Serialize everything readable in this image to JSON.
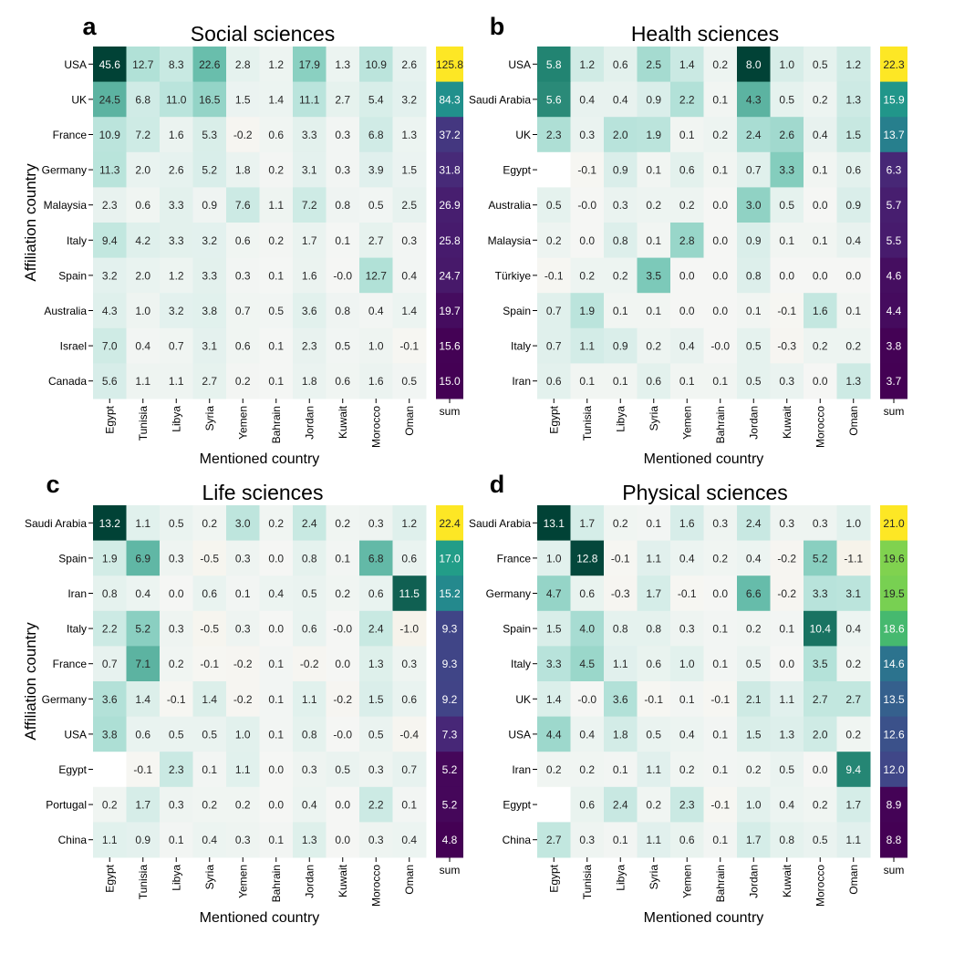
{
  "figure": {
    "x_axis_label": "Mentioned country",
    "y_axis_label": "Affiliation country",
    "sum_label": "sum",
    "mentioned_countries": [
      "Egypt",
      "Tunisia",
      "Libya",
      "Syria",
      "Yemen",
      "Bahrain",
      "Jordan",
      "Kuwait",
      "Morocco",
      "Oman"
    ]
  },
  "chart_data": [
    {
      "type": "heatmap",
      "panel": "a",
      "title": "Social sciences",
      "xlabel": "Mentioned country",
      "ylabel": "Affiliation country",
      "columns": [
        "Egypt",
        "Tunisia",
        "Libya",
        "Syria",
        "Yemen",
        "Bahrain",
        "Jordan",
        "Kuwait",
        "Morocco",
        "Oman"
      ],
      "rows": [
        {
          "country": "USA",
          "values": [
            45.6,
            12.7,
            8.3,
            22.6,
            2.8,
            1.2,
            17.9,
            1.3,
            10.9,
            2.6
          ],
          "sum": "125.8"
        },
        {
          "country": "UK",
          "values": [
            24.5,
            6.8,
            11.0,
            16.5,
            1.5,
            1.4,
            11.1,
            2.7,
            5.4,
            3.2
          ],
          "sum": "84.3"
        },
        {
          "country": "France",
          "values": [
            10.9,
            7.2,
            1.6,
            5.3,
            -0.2,
            0.6,
            3.3,
            0.3,
            6.8,
            1.3
          ],
          "sum": "37.2"
        },
        {
          "country": "Germany",
          "values": [
            11.3,
            2.0,
            2.6,
            5.2,
            1.8,
            0.2,
            3.1,
            0.3,
            3.9,
            1.5
          ],
          "sum": "31.8"
        },
        {
          "country": "Malaysia",
          "values": [
            2.3,
            0.6,
            3.3,
            0.9,
            7.6,
            1.1,
            7.2,
            0.8,
            0.5,
            2.5
          ],
          "sum": "26.9"
        },
        {
          "country": "Italy",
          "values": [
            9.4,
            4.2,
            3.3,
            3.2,
            0.6,
            0.2,
            1.7,
            0.1,
            2.7,
            0.3
          ],
          "sum": "25.8"
        },
        {
          "country": "Spain",
          "values": [
            3.2,
            2.0,
            1.2,
            3.3,
            0.3,
            0.1,
            1.6,
            "-0.0",
            12.7,
            0.4
          ],
          "sum": "24.7"
        },
        {
          "country": "Australia",
          "values": [
            4.3,
            1.0,
            3.2,
            3.8,
            0.7,
            0.5,
            3.6,
            0.8,
            0.4,
            1.4
          ],
          "sum": "19.7"
        },
        {
          "country": "Israel",
          "values": [
            7.0,
            0.4,
            0.7,
            3.1,
            0.6,
            0.1,
            2.3,
            0.5,
            1.0,
            -0.1
          ],
          "sum": "15.6"
        },
        {
          "country": "Canada",
          "values": [
            5.6,
            1.1,
            1.1,
            2.7,
            0.2,
            0.1,
            1.8,
            0.6,
            1.6,
            0.5
          ],
          "sum": "15.0"
        }
      ]
    },
    {
      "type": "heatmap",
      "panel": "b",
      "title": "Health sciences",
      "xlabel": "Mentioned country",
      "ylabel": "",
      "columns": [
        "Egypt",
        "Tunisia",
        "Libya",
        "Syria",
        "Yemen",
        "Bahrain",
        "Jordan",
        "Kuwait",
        "Morocco",
        "Oman"
      ],
      "rows": [
        {
          "country": "USA",
          "values": [
            5.8,
            1.2,
            0.6,
            2.5,
            1.4,
            0.2,
            8.0,
            1.0,
            0.5,
            1.2
          ],
          "sum": "22.3"
        },
        {
          "country": "Saudi Arabia",
          "values": [
            5.6,
            0.4,
            0.4,
            0.9,
            2.2,
            0.1,
            4.3,
            0.5,
            0.2,
            1.3
          ],
          "sum": "15.9"
        },
        {
          "country": "UK",
          "values": [
            2.3,
            0.3,
            2.0,
            1.9,
            0.1,
            0.2,
            2.4,
            2.6,
            0.4,
            1.5
          ],
          "sum": "13.7"
        },
        {
          "country": "Egypt",
          "values": [
            null,
            -0.1,
            0.9,
            0.1,
            0.6,
            0.1,
            0.7,
            3.3,
            0.1,
            0.6
          ],
          "sum": "6.3"
        },
        {
          "country": "Australia",
          "values": [
            0.5,
            "-0.0",
            0.3,
            0.2,
            0.2,
            0.0,
            3.0,
            0.5,
            0.0,
            0.9
          ],
          "sum": "5.7"
        },
        {
          "country": "Malaysia",
          "values": [
            0.2,
            0.0,
            0.8,
            0.1,
            2.8,
            0.0,
            0.9,
            0.1,
            0.1,
            0.4
          ],
          "sum": "5.5"
        },
        {
          "country": "Türkiye",
          "values": [
            -0.1,
            0.2,
            0.2,
            3.5,
            0.0,
            0.0,
            0.8,
            0.0,
            0.0,
            0.0
          ],
          "sum": "4.6"
        },
        {
          "country": "Spain",
          "values": [
            0.7,
            1.9,
            0.1,
            0.1,
            0.0,
            0.0,
            0.1,
            -0.1,
            1.6,
            0.1
          ],
          "sum": "4.4"
        },
        {
          "country": "Italy",
          "values": [
            0.7,
            1.1,
            0.9,
            0.2,
            0.4,
            "-0.0",
            0.5,
            -0.3,
            0.2,
            0.2
          ],
          "sum": "3.8"
        },
        {
          "country": "Iran",
          "values": [
            0.6,
            0.1,
            0.1,
            0.6,
            0.1,
            0.1,
            0.5,
            0.3,
            0.0,
            1.3
          ],
          "sum": "3.7"
        }
      ]
    },
    {
      "type": "heatmap",
      "panel": "c",
      "title": "Life sciences",
      "xlabel": "Mentioned country",
      "ylabel": "Affiliation country",
      "columns": [
        "Egypt",
        "Tunisia",
        "Libya",
        "Syria",
        "Yemen",
        "Bahrain",
        "Jordan",
        "Kuwait",
        "Morocco",
        "Oman"
      ],
      "rows": [
        {
          "country": "Saudi Arabia",
          "values": [
            13.2,
            1.1,
            0.5,
            0.2,
            3.0,
            0.2,
            2.4,
            0.2,
            0.3,
            1.2
          ],
          "sum": "22.4"
        },
        {
          "country": "Spain",
          "values": [
            1.9,
            6.9,
            0.3,
            -0.5,
            0.3,
            0.0,
            0.8,
            0.1,
            6.8,
            0.6
          ],
          "sum": "17.0"
        },
        {
          "country": "Iran",
          "values": [
            0.8,
            0.4,
            0.0,
            0.6,
            0.1,
            0.4,
            0.5,
            0.2,
            0.6,
            11.5
          ],
          "sum": "15.2"
        },
        {
          "country": "Italy",
          "values": [
            2.2,
            5.2,
            0.3,
            -0.5,
            0.3,
            0.0,
            0.6,
            "-0.0",
            2.4,
            -1.0
          ],
          "sum": "9.3"
        },
        {
          "country": "France",
          "values": [
            0.7,
            7.1,
            0.2,
            -0.1,
            -0.2,
            0.1,
            -0.2,
            0.0,
            1.3,
            0.3
          ],
          "sum": "9.3"
        },
        {
          "country": "Germany",
          "values": [
            3.6,
            1.4,
            -0.1,
            1.4,
            -0.2,
            0.1,
            1.1,
            -0.2,
            1.5,
            0.6
          ],
          "sum": "9.2"
        },
        {
          "country": "USA",
          "values": [
            3.8,
            0.6,
            0.5,
            0.5,
            1.0,
            0.1,
            0.8,
            "-0.0",
            0.5,
            -0.4
          ],
          "sum": "7.3"
        },
        {
          "country": "Egypt",
          "values": [
            null,
            -0.1,
            2.3,
            0.1,
            1.1,
            0.0,
            0.3,
            0.5,
            0.3,
            0.7
          ],
          "sum": "5.2"
        },
        {
          "country": "Portugal",
          "values": [
            0.2,
            1.7,
            0.3,
            0.2,
            0.2,
            0.0,
            0.4,
            0.0,
            2.2,
            0.1
          ],
          "sum": "5.2"
        },
        {
          "country": "China",
          "values": [
            1.1,
            0.9,
            0.1,
            0.4,
            0.3,
            0.1,
            1.3,
            0.0,
            0.3,
            0.4
          ],
          "sum": "4.8"
        }
      ]
    },
    {
      "type": "heatmap",
      "panel": "d",
      "title": "Physical sciences",
      "xlabel": "Mentioned country",
      "ylabel": "",
      "columns": [
        "Egypt",
        "Tunisia",
        "Libya",
        "Syria",
        "Yemen",
        "Bahrain",
        "Jordan",
        "Kuwait",
        "Morocco",
        "Oman"
      ],
      "rows": [
        {
          "country": "Saudi Arabia",
          "values": [
            13.1,
            1.7,
            0.2,
            0.1,
            1.6,
            0.3,
            2.4,
            0.3,
            0.3,
            1.0
          ],
          "sum": "21.0"
        },
        {
          "country": "France",
          "values": [
            1.0,
            12.8,
            -0.1,
            1.1,
            0.4,
            0.2,
            0.4,
            -0.2,
            5.2,
            -1.1
          ],
          "sum": "19.6"
        },
        {
          "country": "Germany",
          "values": [
            4.7,
            0.6,
            -0.3,
            1.7,
            -0.1,
            0.0,
            6.6,
            -0.2,
            3.3,
            3.1
          ],
          "sum": "19.5"
        },
        {
          "country": "Spain",
          "values": [
            1.5,
            4.0,
            0.8,
            0.8,
            0.3,
            0.1,
            0.2,
            0.1,
            10.4,
            0.4
          ],
          "sum": "18.6"
        },
        {
          "country": "Italy",
          "values": [
            3.3,
            4.5,
            1.1,
            0.6,
            1.0,
            0.1,
            0.5,
            0.0,
            3.5,
            0.2
          ],
          "sum": "14.6"
        },
        {
          "country": "UK",
          "values": [
            1.4,
            "-0.0",
            3.6,
            -0.1,
            0.1,
            -0.1,
            2.1,
            1.1,
            2.7,
            2.7
          ],
          "sum": "13.5"
        },
        {
          "country": "USA",
          "values": [
            4.4,
            0.4,
            1.8,
            0.5,
            0.4,
            0.1,
            1.5,
            1.3,
            2.0,
            0.2
          ],
          "sum": "12.6"
        },
        {
          "country": "Iran",
          "values": [
            0.2,
            0.2,
            0.1,
            1.1,
            0.2,
            0.1,
            0.2,
            0.5,
            0.0,
            9.4
          ],
          "sum": "12.0"
        },
        {
          "country": "Egypt",
          "values": [
            null,
            0.6,
            2.4,
            0.2,
            2.3,
            -0.1,
            1.0,
            0.4,
            0.2,
            1.7
          ],
          "sum": "8.9"
        },
        {
          "country": "China",
          "values": [
            2.7,
            0.3,
            0.1,
            1.1,
            0.6,
            0.1,
            1.7,
            0.8,
            0.5,
            1.1
          ],
          "sum": "8.8"
        }
      ]
    }
  ]
}
